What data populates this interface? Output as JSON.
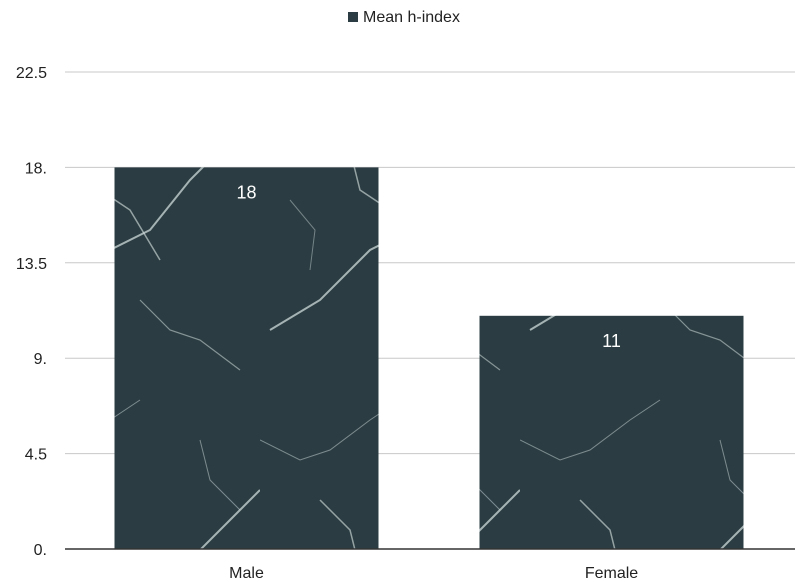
{
  "chart_data": {
    "type": "bar",
    "categories": [
      "Male",
      "Female"
    ],
    "series": [
      {
        "name": "Mean h-index",
        "values": [
          18,
          11
        ],
        "data_labels": [
          "18",
          "11"
        ]
      }
    ],
    "y_ticks": [
      {
        "value": 0,
        "label": "0."
      },
      {
        "value": 4.5,
        "label": "4.5"
      },
      {
        "value": 9,
        "label": "9."
      },
      {
        "value": 13.5,
        "label": "13.5"
      },
      {
        "value": 18,
        "label": "18."
      },
      {
        "value": 22.5,
        "label": "22.5"
      }
    ],
    "ylim": [
      0,
      22.5
    ],
    "grid": true,
    "legend_position": "top-center",
    "colors": {
      "bar": "#2b3d42",
      "bar_vein": "#cfdadb",
      "grid": "#c8c8c8",
      "axis": "#333333"
    }
  }
}
